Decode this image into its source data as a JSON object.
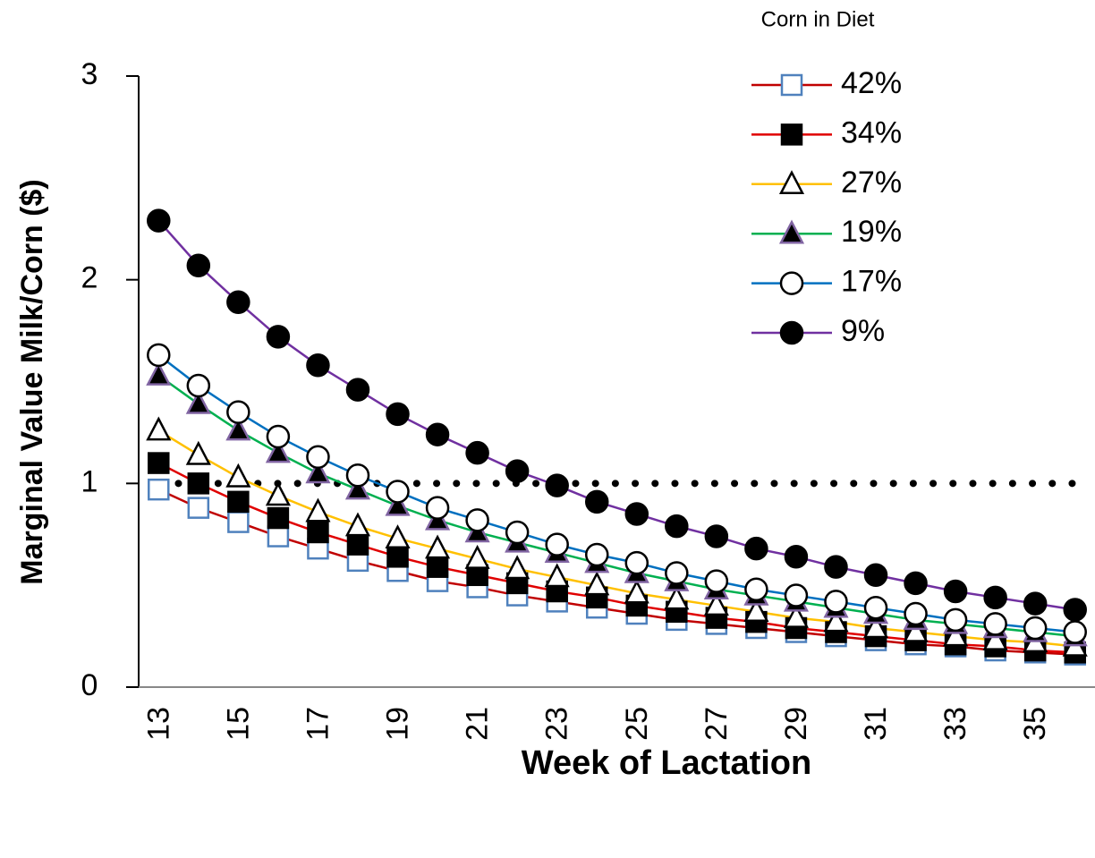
{
  "chart_data": {
    "type": "line",
    "x_label": "Week of Lactation",
    "y_label": "Marginal Value Milk/Corn ($)",
    "legend_title": "Corn in Diet",
    "legend": "upper right",
    "categories": [
      "13",
      null,
      "15",
      null,
      "17",
      null,
      "19",
      null,
      "21",
      null,
      "23",
      null,
      "25",
      null,
      "27",
      null,
      "29",
      null,
      "31",
      null,
      "33",
      null,
      "35",
      null
    ],
    "ylim": [
      0,
      3
    ],
    "yticks": [
      0,
      1,
      2,
      3
    ],
    "reference_line": {
      "value": 1,
      "color": "#000000"
    },
    "series": [
      {
        "name": "42%",
        "color": "#c00000",
        "marker": "square",
        "marker_fill": "#ffffff",
        "marker_edge": "#4f81bd",
        "values": [
          0.97,
          0.88,
          0.81,
          0.74,
          0.68,
          0.62,
          0.57,
          0.52,
          0.49,
          0.45,
          0.42,
          0.39,
          0.36,
          0.33,
          0.31,
          0.29,
          0.27,
          0.25,
          0.23,
          0.21,
          0.2,
          0.18,
          0.17,
          0.16
        ]
      },
      {
        "name": "34%",
        "color": "#e00000",
        "marker": "square",
        "marker_fill": "#000000",
        "marker_edge": "#000000",
        "values": [
          1.1,
          1.0,
          0.91,
          0.83,
          0.76,
          0.7,
          0.64,
          0.59,
          0.55,
          0.51,
          0.47,
          0.44,
          0.4,
          0.37,
          0.34,
          0.32,
          0.29,
          0.27,
          0.25,
          0.23,
          0.21,
          0.2,
          0.18,
          0.17
        ]
      },
      {
        "name": "27%",
        "color": "#ffc000",
        "marker": "triangle",
        "marker_fill": "#ffffff",
        "marker_edge": "#000000",
        "values": [
          1.26,
          1.14,
          1.03,
          0.94,
          0.86,
          0.79,
          0.73,
          0.68,
          0.63,
          0.58,
          0.54,
          0.5,
          0.46,
          0.43,
          0.4,
          0.37,
          0.34,
          0.32,
          0.29,
          0.27,
          0.25,
          0.23,
          0.22,
          0.2
        ]
      },
      {
        "name": "19%",
        "color": "#00b050",
        "marker": "triangle",
        "marker_fill": "#000000",
        "marker_edge": "#8064a2",
        "values": [
          1.53,
          1.39,
          1.26,
          1.15,
          1.05,
          0.97,
          0.89,
          0.82,
          0.76,
          0.71,
          0.66,
          0.61,
          0.56,
          0.52,
          0.48,
          0.45,
          0.42,
          0.39,
          0.36,
          0.33,
          0.31,
          0.29,
          0.27,
          0.25
        ]
      },
      {
        "name": "17%",
        "color": "#0070c0",
        "marker": "circle",
        "marker_fill": "#ffffff",
        "marker_edge": "#000000",
        "values": [
          1.63,
          1.48,
          1.35,
          1.23,
          1.13,
          1.04,
          0.96,
          0.88,
          0.82,
          0.76,
          0.7,
          0.65,
          0.61,
          0.56,
          0.52,
          0.48,
          0.45,
          0.42,
          0.39,
          0.36,
          0.33,
          0.31,
          0.29,
          0.27
        ]
      },
      {
        "name": "9%",
        "color": "#7030a0",
        "marker": "circle",
        "marker_fill": "#000000",
        "marker_edge": "#000000",
        "values": [
          2.29,
          2.07,
          1.89,
          1.72,
          1.58,
          1.46,
          1.34,
          1.24,
          1.15,
          1.06,
          0.99,
          0.91,
          0.85,
          0.79,
          0.74,
          0.68,
          0.64,
          0.59,
          0.55,
          0.51,
          0.47,
          0.44,
          0.41,
          0.38
        ]
      }
    ]
  }
}
